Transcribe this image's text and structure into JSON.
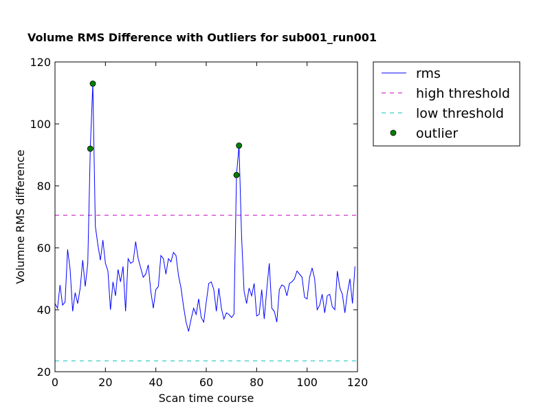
{
  "chart_data": {
    "type": "line",
    "title": "Volume RMS Difference with Outliers for sub001_run001",
    "xlabel": "Scan time course",
    "ylabel": "Volumne RMS difference",
    "xlim": [
      0,
      120
    ],
    "ylim": [
      20,
      120
    ],
    "xticks": [
      0,
      20,
      40,
      60,
      80,
      100,
      120
    ],
    "yticks": [
      20,
      40,
      60,
      80,
      100,
      120
    ],
    "grid": false,
    "legend_position": "outside-top-right",
    "series": [
      {
        "name": "rms",
        "style": "line",
        "color": "#0000ff",
        "x": [
          0,
          1,
          2,
          3,
          4,
          5,
          6,
          7,
          8,
          9,
          10,
          11,
          12,
          13,
          14,
          15,
          16,
          17,
          18,
          19,
          20,
          21,
          22,
          23,
          24,
          25,
          26,
          27,
          28,
          29,
          30,
          31,
          32,
          33,
          34,
          35,
          36,
          37,
          38,
          39,
          40,
          41,
          42,
          43,
          44,
          45,
          46,
          47,
          48,
          49,
          50,
          51,
          52,
          53,
          54,
          55,
          56,
          57,
          58,
          59,
          60,
          61,
          62,
          63,
          64,
          65,
          66,
          67,
          68,
          69,
          70,
          71,
          72,
          73,
          74,
          75,
          76,
          77,
          78,
          79,
          80,
          81,
          82,
          83,
          84,
          85,
          86,
          87,
          88,
          89,
          90,
          91,
          92,
          93,
          94,
          95,
          96,
          97,
          98,
          99,
          100,
          101,
          102,
          103,
          104,
          105,
          106,
          107,
          108,
          109,
          110,
          111,
          112,
          113,
          114,
          115,
          116,
          117,
          118,
          119
        ],
        "y": [
          42,
          40.5,
          48,
          41.5,
          42.5,
          59.5,
          53,
          39.5,
          45.5,
          42,
          47,
          56,
          47.5,
          55,
          92,
          113,
          67,
          61,
          56,
          62.5,
          55,
          52.5,
          40,
          49,
          44.5,
          53,
          49,
          54,
          39.5,
          56.5,
          55,
          55.5,
          62,
          56.5,
          53.5,
          50.5,
          51.5,
          54.5,
          46,
          40.5,
          46.5,
          47.5,
          57.5,
          56.5,
          51.5,
          56.5,
          55.5,
          58.5,
          57.5,
          51,
          47,
          41,
          36,
          33,
          37,
          40.5,
          38.5,
          43.5,
          37.5,
          36,
          42.5,
          48.5,
          49,
          46.5,
          39.5,
          47,
          40.5,
          37,
          39,
          38.5,
          37.5,
          38.5,
          83.5,
          93,
          64,
          46,
          42,
          47,
          44.5,
          48.5,
          38,
          38.5,
          46.5,
          37,
          46.5,
          55,
          40.5,
          39.5,
          36,
          46.5,
          48,
          47.5,
          44.5,
          48.5,
          49,
          50,
          52.5,
          51.5,
          50.5,
          44,
          43.5,
          50.5,
          53.5,
          50,
          40,
          41.5,
          45,
          39,
          44.5,
          45,
          41,
          40,
          52.5,
          47,
          45,
          39,
          45.5,
          50,
          42,
          54
        ]
      },
      {
        "name": "high threshold",
        "style": "dashed",
        "color": "#bf00bf",
        "value": 70.5
      },
      {
        "name": "low threshold",
        "style": "dashed",
        "color": "#00bfbf",
        "value": 23.5
      },
      {
        "name": "outlier",
        "style": "marker",
        "color": "#008000",
        "x": [
          14,
          15,
          72,
          73
        ],
        "y": [
          92,
          113,
          83.5,
          93
        ]
      }
    ]
  }
}
